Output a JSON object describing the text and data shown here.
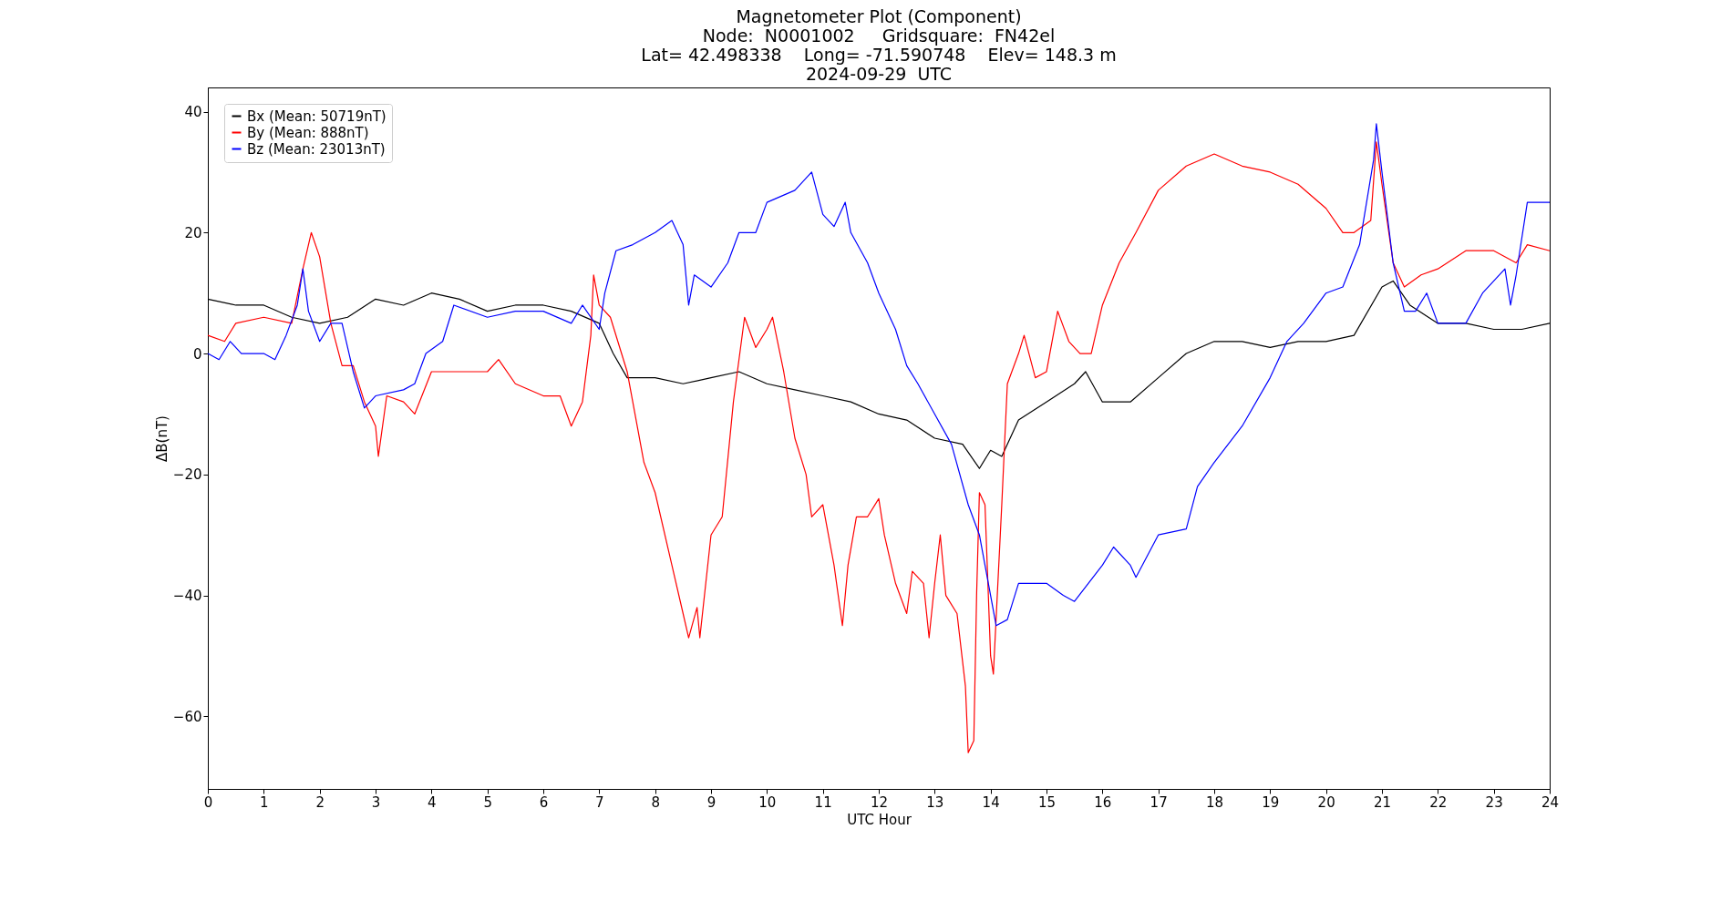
{
  "chart_data": {
    "type": "line",
    "title": "Magnetometer Plot (Component)",
    "subtitle": "Node:  N0001002     Gridsquare:  FN42el\nLat= 42.498338    Long= -71.590748    Elev= 148.3 m\n2024-09-29  UTC",
    "xlabel": "UTC Hour",
    "ylabel": "ΔB(nT)",
    "xlim": [
      0,
      24
    ],
    "xticks": [
      0,
      1,
      2,
      3,
      4,
      5,
      6,
      7,
      8,
      9,
      10,
      11,
      12,
      13,
      14,
      15,
      16,
      17,
      18,
      19,
      20,
      21,
      22,
      23,
      24
    ],
    "ylim": [
      -72,
      44
    ],
    "yticks": [
      -60,
      -40,
      -20,
      0,
      20,
      40
    ],
    "grid": false,
    "legend": "top left",
    "series": [
      {
        "name": "Bx (Mean: 50719nT)",
        "color": "#000000",
        "x": [
          0,
          0.5,
          1,
          1.5,
          2,
          2.5,
          3,
          3.5,
          4,
          4.5,
          5,
          5.5,
          6,
          6.5,
          7,
          7.25,
          7.5,
          8,
          8.5,
          9,
          9.5,
          10,
          10.5,
          11,
          11.5,
          12,
          12.5,
          13,
          13.5,
          13.8,
          14,
          14.2,
          14.5,
          15,
          15.5,
          15.7,
          16,
          16.5,
          17,
          17.5,
          18,
          18.5,
          19,
          19.5,
          20,
          20.5,
          21,
          21.2,
          21.5,
          22,
          22.5,
          23,
          23.5,
          24
        ],
        "values": [
          9,
          8,
          8,
          6,
          5,
          6,
          9,
          8,
          10,
          9,
          7,
          8,
          8,
          7,
          5,
          0,
          -4,
          -4,
          -5,
          -4,
          -3,
          -5,
          -6,
          -7,
          -8,
          -10,
          -11,
          -14,
          -15,
          -19,
          -16,
          -17,
          -11,
          -8,
          -5,
          -3,
          -8,
          -8,
          -4,
          0,
          2,
          2,
          1,
          2,
          2,
          3,
          11,
          12,
          8,
          5,
          5,
          4,
          4,
          5
        ]
      },
      {
        "name": "By (Mean: 888nT)",
        "color": "#ff0000",
        "x": [
          0,
          0.3,
          0.5,
          1,
          1.5,
          1.7,
          1.85,
          2,
          2.2,
          2.4,
          2.6,
          2.8,
          3,
          3.05,
          3.2,
          3.5,
          3.7,
          4,
          4.5,
          5,
          5.2,
          5.5,
          6,
          6.3,
          6.5,
          6.7,
          6.85,
          6.9,
          7,
          7.2,
          7.5,
          7.8,
          8,
          8.3,
          8.5,
          8.6,
          8.75,
          8.8,
          9,
          9.2,
          9.4,
          9.6,
          9.8,
          10,
          10.1,
          10.3,
          10.5,
          10.7,
          10.8,
          11,
          11.2,
          11.35,
          11.45,
          11.6,
          11.8,
          12,
          12.1,
          12.3,
          12.5,
          12.6,
          12.8,
          12.9,
          13,
          13.1,
          13.2,
          13.4,
          13.55,
          13.6,
          13.7,
          13.75,
          13.8,
          13.9,
          14,
          14.05,
          14.2,
          14.3,
          14.5,
          14.6,
          14.8,
          15,
          15.2,
          15.4,
          15.6,
          15.8,
          16,
          16.3,
          16.6,
          17,
          17.5,
          18,
          18.5,
          19,
          19.5,
          20,
          20.3,
          20.5,
          20.8,
          20.9,
          21,
          21.2,
          21.4,
          21.7,
          22,
          22.5,
          23,
          23.4,
          23.6,
          24
        ],
        "values": [
          3,
          2,
          5,
          6,
          5,
          14,
          20,
          16,
          5,
          -2,
          -2,
          -8,
          -12,
          -17,
          -7,
          -8,
          -10,
          -3,
          -3,
          -3,
          -1,
          -5,
          -7,
          -7,
          -12,
          -8,
          3,
          13,
          8,
          6,
          -3,
          -18,
          -23,
          -35,
          -43,
          -47,
          -42,
          -47,
          -30,
          -27,
          -8,
          6,
          1,
          4,
          6,
          -3,
          -14,
          -20,
          -27,
          -25,
          -35,
          -45,
          -35,
          -27,
          -27,
          -24,
          -30,
          -38,
          -43,
          -36,
          -38,
          -47,
          -38,
          -30,
          -40,
          -43,
          -55,
          -66,
          -64,
          -40,
          -23,
          -25,
          -50,
          -53,
          -25,
          -5,
          0,
          3,
          -4,
          -3,
          7,
          2,
          0,
          0,
          8,
          15,
          20,
          27,
          31,
          33,
          31,
          30,
          28,
          24,
          20,
          20,
          22,
          35,
          28,
          15,
          11,
          13,
          14,
          17,
          17,
          15,
          18,
          17
        ]
      },
      {
        "name": "Bz (Mean: 23013nT)",
        "color": "#0000ff",
        "x": [
          0,
          0.2,
          0.4,
          0.6,
          1,
          1.2,
          1.4,
          1.6,
          1.7,
          1.8,
          2,
          2.2,
          2.4,
          2.6,
          2.8,
          3,
          3.5,
          3.7,
          3.9,
          4.2,
          4.4,
          5,
          5.5,
          6,
          6.5,
          6.7,
          7,
          7.1,
          7.3,
          7.6,
          8,
          8.3,
          8.5,
          8.6,
          8.7,
          9,
          9.3,
          9.5,
          9.8,
          10,
          10.5,
          10.8,
          11,
          11.2,
          11.4,
          11.5,
          11.8,
          12,
          12.3,
          12.5,
          12.7,
          13,
          13.3,
          13.6,
          13.8,
          14,
          14.1,
          14.3,
          14.5,
          15,
          15.3,
          15.5,
          16,
          16.2,
          16.5,
          16.6,
          17,
          17.5,
          17.7,
          18,
          18.5,
          19,
          19.3,
          19.6,
          20,
          20.3,
          20.6,
          20.85,
          20.9,
          21,
          21.2,
          21.4,
          21.6,
          21.8,
          22,
          22.5,
          22.8,
          23,
          23.2,
          23.3,
          23.4,
          23.6,
          24
        ],
        "values": [
          0,
          -1,
          2,
          0,
          0,
          -1,
          3,
          8,
          14,
          7,
          2,
          5,
          5,
          -3,
          -9,
          -7,
          -6,
          -5,
          0,
          2,
          8,
          6,
          7,
          7,
          5,
          8,
          4,
          10,
          17,
          18,
          20,
          22,
          18,
          8,
          13,
          11,
          15,
          20,
          20,
          25,
          27,
          30,
          23,
          21,
          25,
          20,
          15,
          10,
          4,
          -2,
          -5,
          -10,
          -15,
          -25,
          -30,
          -40,
          -45,
          -44,
          -38,
          -38,
          -40,
          -41,
          -35,
          -32,
          -35,
          -37,
          -30,
          -29,
          -22,
          -18,
          -12,
          -4,
          2,
          5,
          10,
          11,
          18,
          32,
          38,
          30,
          15,
          7,
          7,
          10,
          5,
          5,
          10,
          12,
          14,
          8,
          13,
          25,
          25
        ]
      }
    ]
  }
}
